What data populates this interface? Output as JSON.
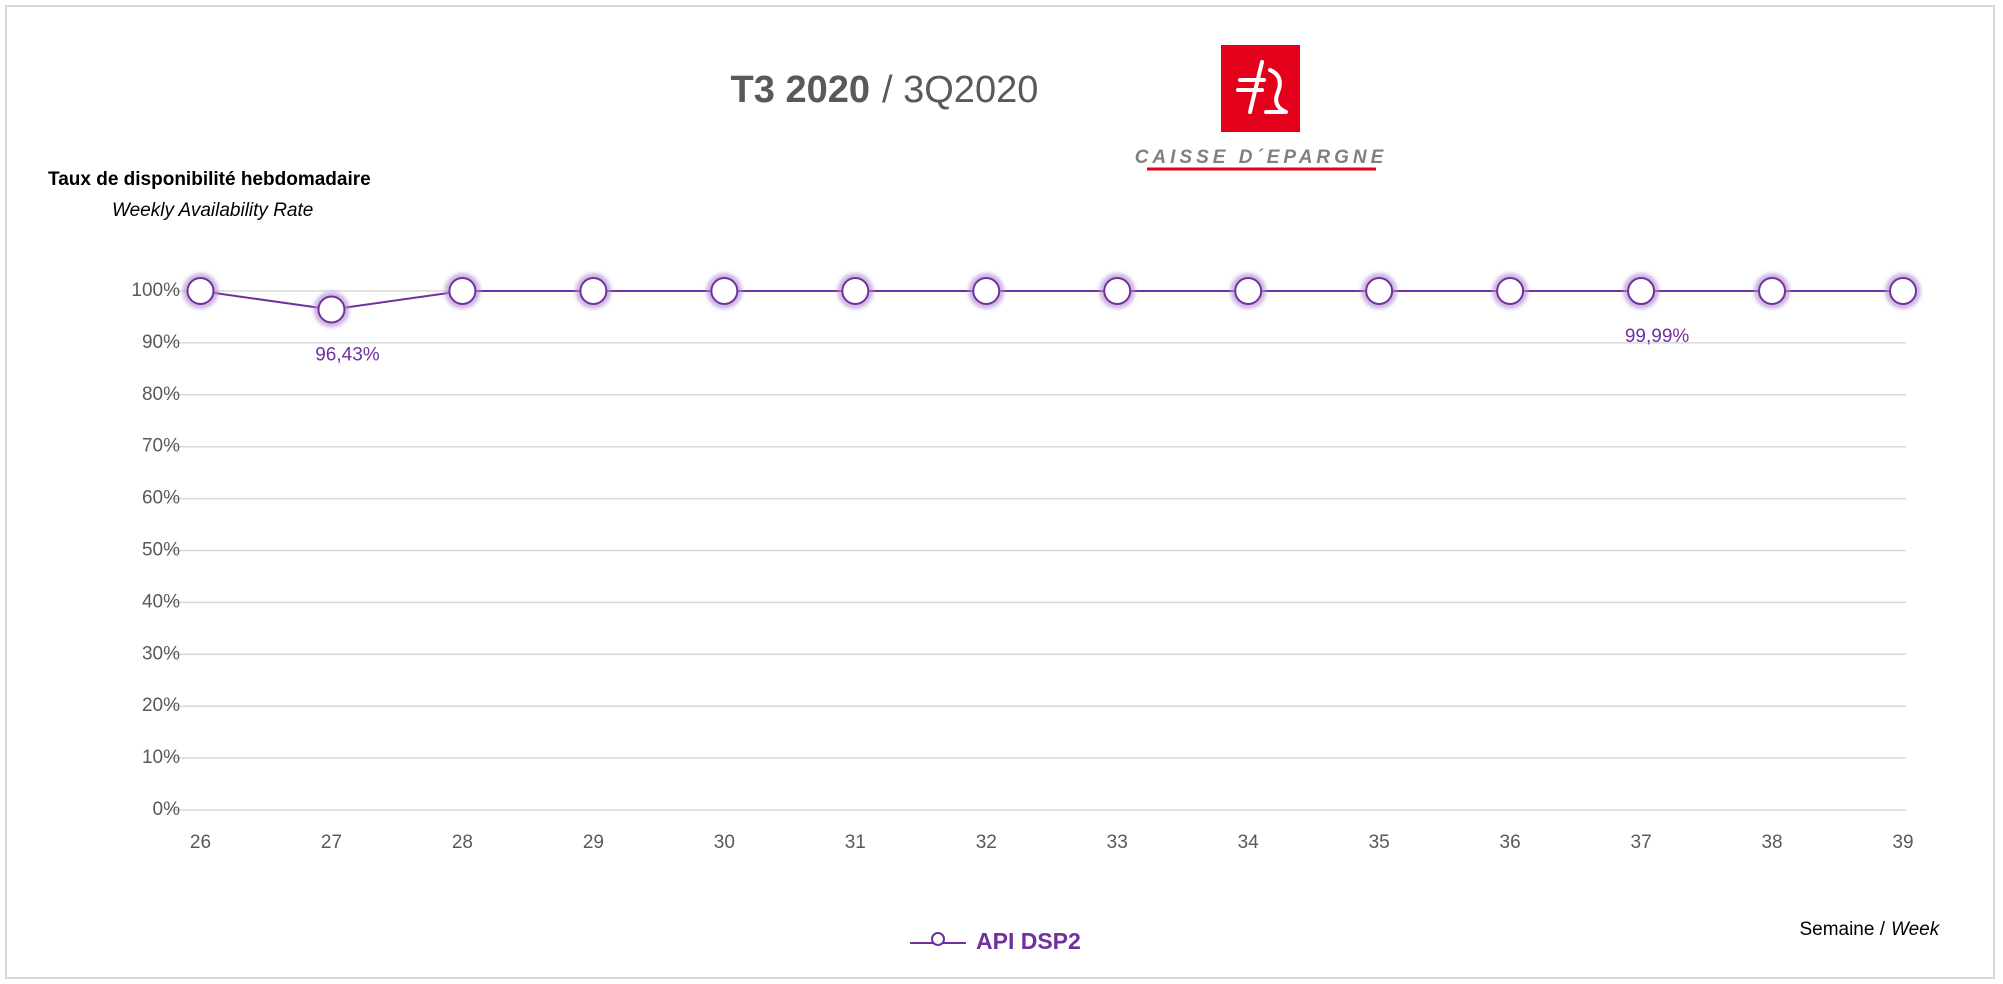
{
  "chart_data": {
    "type": "line",
    "title_bold": "T3 2020",
    "title_rest": "/ 3Q2020",
    "logo_text": "CAISSE D´EPARGNE",
    "y_label": "Taux de disponibilité hebdomadaire",
    "y_label_en": "Weekly Availability Rate",
    "x_label": "Semaine /",
    "x_label_en": "Week",
    "categories": [
      "26",
      "27",
      "28",
      "29",
      "30",
      "31",
      "32",
      "33",
      "34",
      "35",
      "36",
      "37",
      "38",
      "39"
    ],
    "series": [
      {
        "name": "API DSP2",
        "color": "#7030a0",
        "values": [
          100,
          96.43,
          100,
          100,
          100,
          100,
          100,
          100,
          100,
          100,
          100,
          99.99,
          100,
          100
        ],
        "value_labels": [
          null,
          "96,43%",
          null,
          null,
          null,
          null,
          null,
          null,
          null,
          null,
          null,
          "99,99%",
          null,
          null
        ]
      }
    ],
    "ylim": [
      0,
      100
    ],
    "yticks": [
      {
        "value": 0,
        "label": "0%"
      },
      {
        "value": 10,
        "label": "10%"
      },
      {
        "value": 20,
        "label": "20%"
      },
      {
        "value": 30,
        "label": "30%"
      },
      {
        "value": 40,
        "label": "40%"
      },
      {
        "value": 50,
        "label": "50%"
      },
      {
        "value": 60,
        "label": "60%"
      },
      {
        "value": 70,
        "label": "70%"
      },
      {
        "value": 80,
        "label": "80%"
      },
      {
        "value": 90,
        "label": "90%"
      },
      {
        "value": 100,
        "label": "100%"
      }
    ],
    "grid": true,
    "legend": "bottom"
  }
}
